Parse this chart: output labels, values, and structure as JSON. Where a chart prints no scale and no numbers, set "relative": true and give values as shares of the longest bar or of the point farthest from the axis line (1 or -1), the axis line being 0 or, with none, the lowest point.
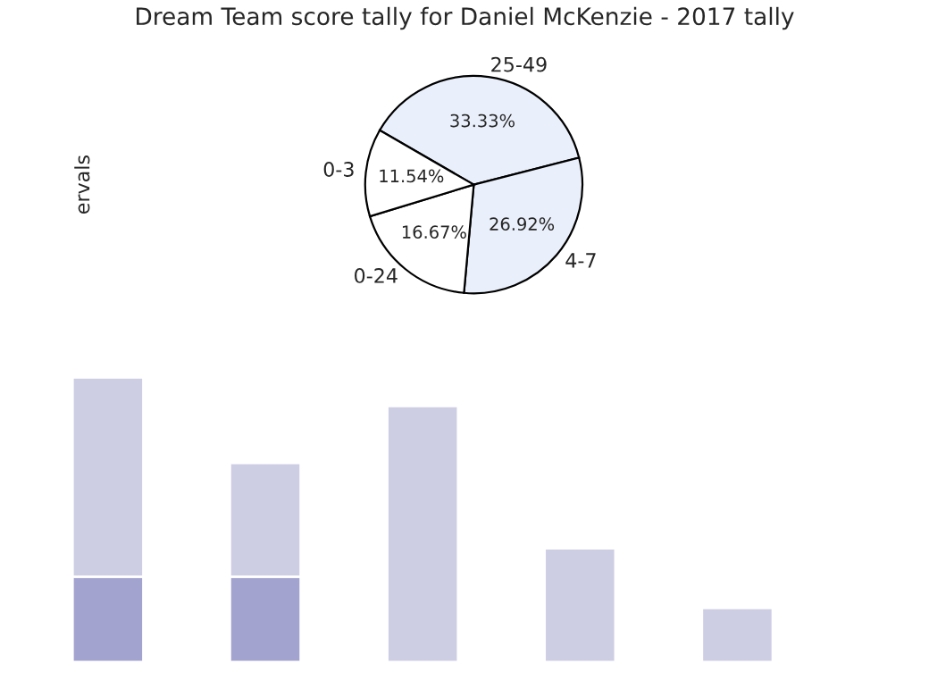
{
  "chart_data": [
    {
      "type": "pie",
      "title": "Dream Team score tally for Daniel McKenzie - 2017 tally",
      "ylabel": "ervals",
      "categories": [
        "25-49",
        "4-7",
        "0-24",
        "0-3"
      ],
      "values": [
        33.33,
        26.92,
        16.67,
        11.54
      ],
      "value_labels": [
        "33.33%",
        "26.92%",
        "16.67%",
        "11.54%"
      ],
      "colors": [
        "#eaf0fb",
        "#eaf0fb",
        "#ffffff",
        "#ffffff"
      ]
    },
    {
      "type": "bar",
      "relative": true,
      "stacked": true,
      "categories": [
        null,
        null,
        null,
        null,
        null
      ],
      "series": [
        {
          "color": "#a3a3d0",
          "values": [
            0.3,
            0.3,
            0,
            0,
            0
          ]
        },
        {
          "color": "#cdcde4",
          "values": [
            0.7,
            0.4,
            0.9,
            0.4,
            0.19
          ]
        }
      ]
    }
  ]
}
